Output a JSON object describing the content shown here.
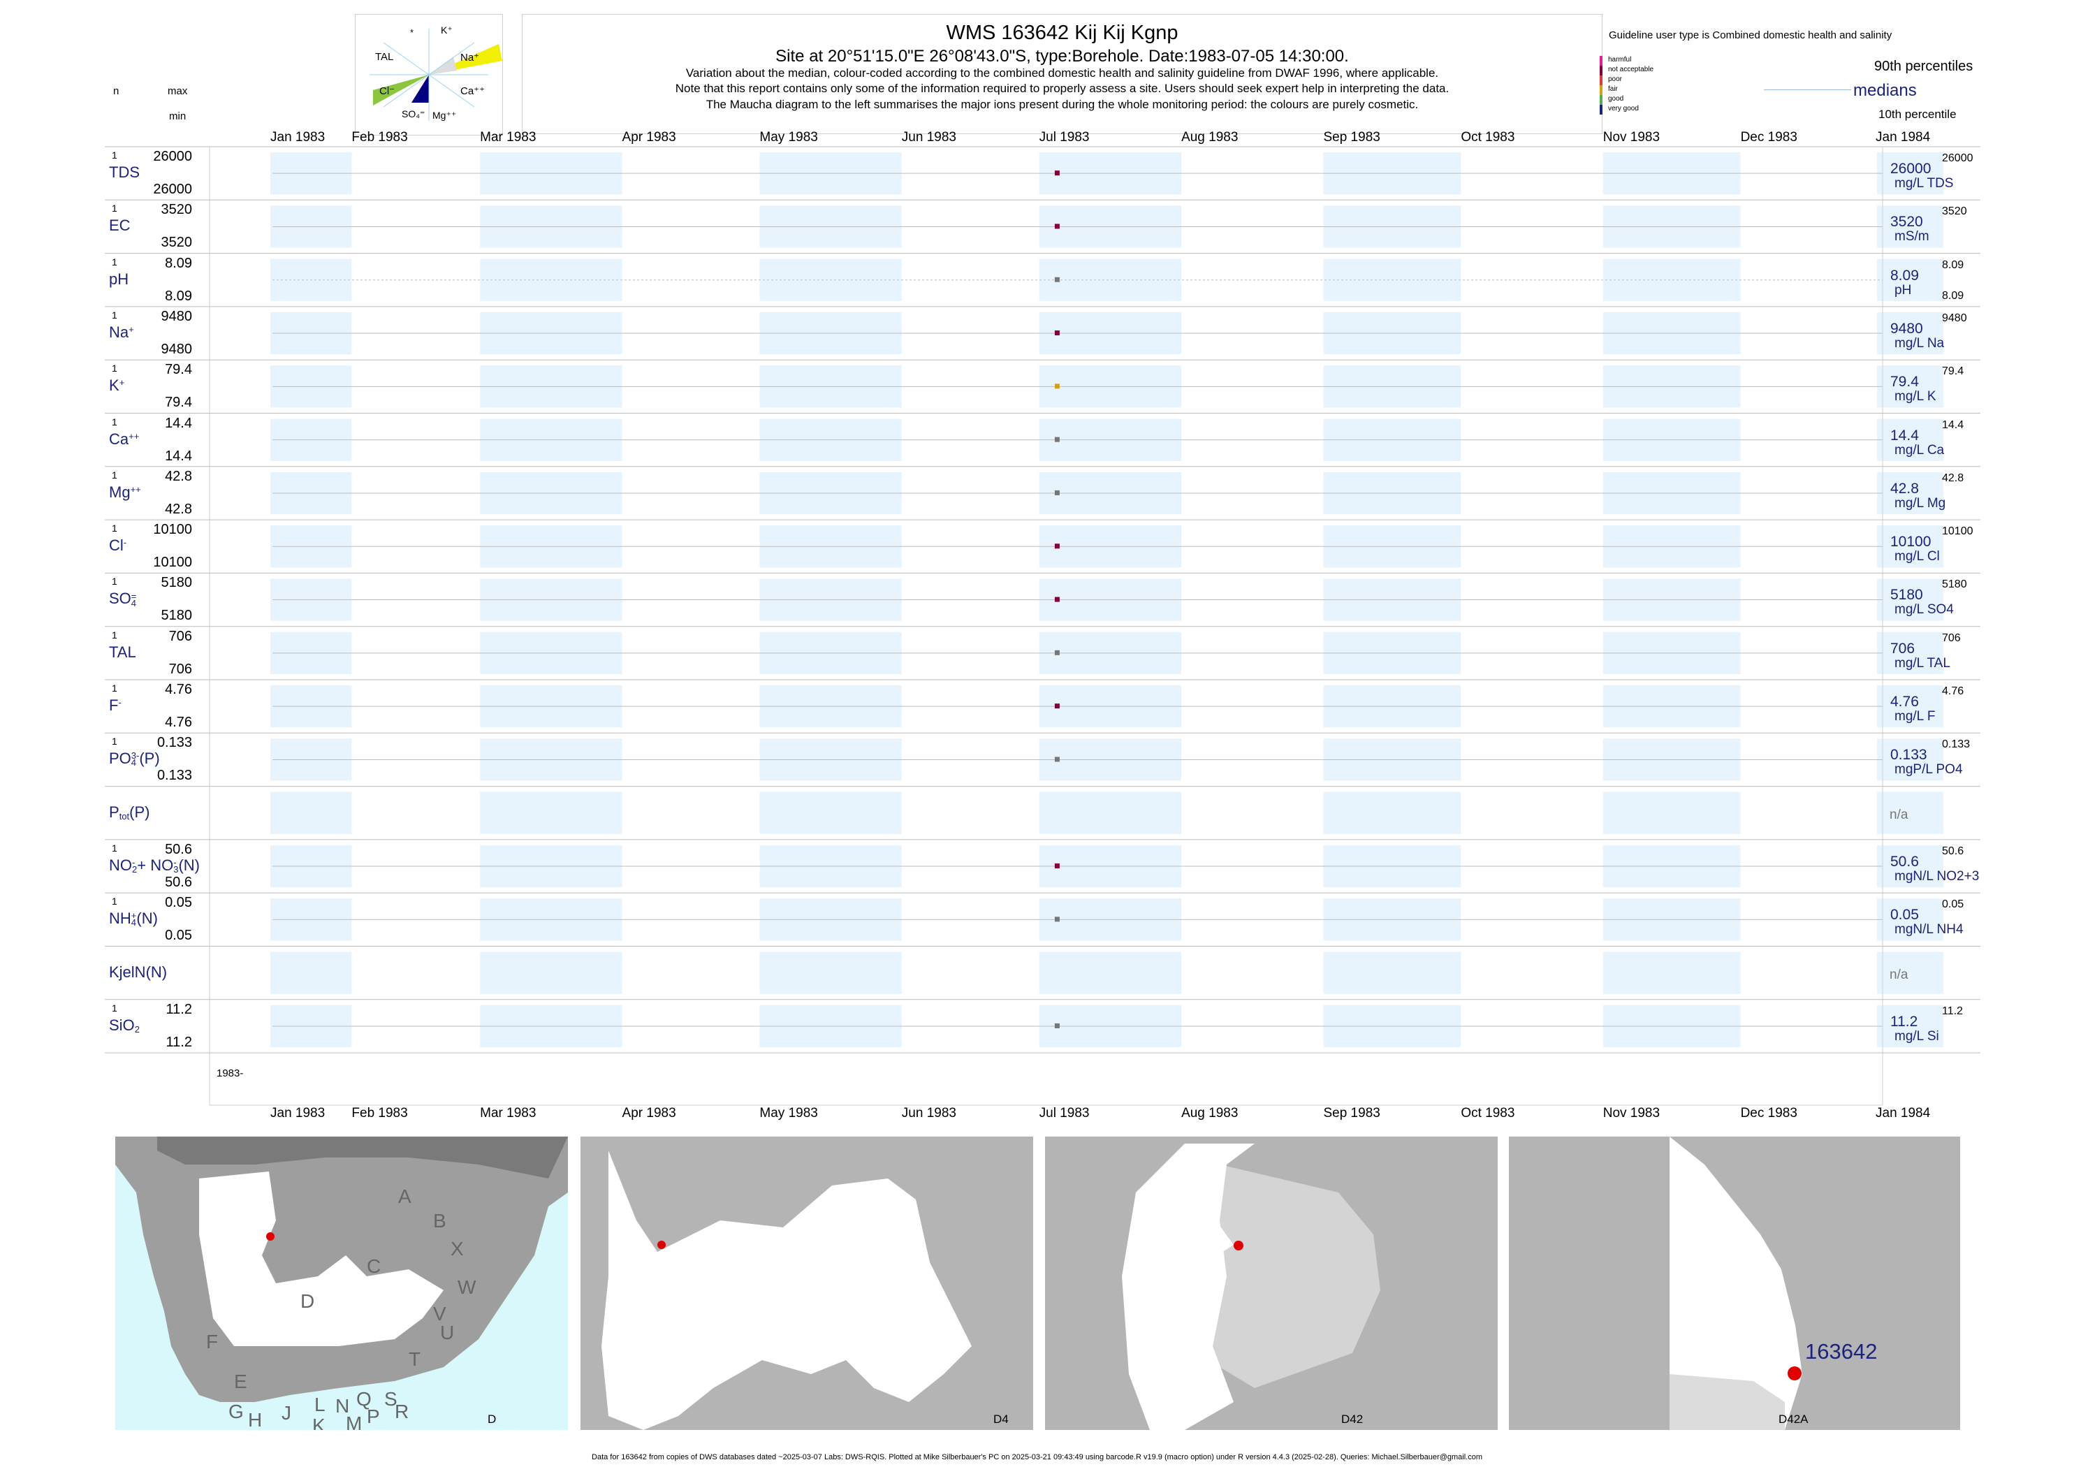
{
  "header": {
    "title": "WMS 163642  Kij Kij Kgnp",
    "subtitle": "Site at 20°51'15.0\"E 26°08'43.0\"S, type:Borehole. Date:1983-07-05 14:30:00.",
    "note1": "Variation about the median,  colour-coded according to the combined domestic health and salinity guideline from DWAF 1996, where applicable.",
    "note2": "Note that this report contains only some of the information required to properly assess a site. Users should seek expert help in interpreting the data.",
    "note3": "The Maucha diagram to the left summarises the major ions present during the whole monitoring period: the colours are purely cosmetic."
  },
  "left_legend": {
    "n": "n",
    "max": "max",
    "min": "min"
  },
  "maucha": {
    "labels": [
      "*",
      "K⁺",
      "Na⁺",
      "Ca⁺⁺",
      "Mg⁺⁺",
      "SO₄⁼",
      "Cl⁻",
      "TAL"
    ],
    "colors": {
      "na": "#f0f000",
      "cl": "#8cc63f",
      "so4": "#000080"
    }
  },
  "guideline": {
    "title": "Guideline user type is Combined domestic health and salinity",
    "categories": [
      {
        "label": "harmful",
        "color": "#e91e8c"
      },
      {
        "label": "not acceptable",
        "color": "#800040"
      },
      {
        "label": "poor",
        "color": "#e53935"
      },
      {
        "label": "fair",
        "color": "#d4a017"
      },
      {
        "label": "good",
        "color": "#4caf50"
      },
      {
        "label": "very good",
        "color": "#1a237e"
      }
    ],
    "p90": "90th percentiles",
    "medians": "medians",
    "p10": "10th percentile"
  },
  "chart_data": {
    "type": "scatter",
    "x_axis": {
      "ticks": [
        "Jan 1983",
        "Feb 1983",
        "Mar 1983",
        "Apr 1983",
        "May 1983",
        "Jun 1983",
        "Jul 1983",
        "Aug 1983",
        "Sep 1983",
        "Oct 1983",
        "Nov 1983",
        "Dec 1983",
        "Jan 1984"
      ],
      "range": [
        "1983-01-01",
        "1984-01-01"
      ],
      "year_label": "1983-"
    },
    "sample_date": "1983-07-05",
    "series": [
      {
        "label": "TDS",
        "n": "1",
        "max": "26000",
        "min": "26000",
        "median": "26000",
        "p90": "26000",
        "unit": "mg/L TDS",
        "value": 26000,
        "color": "#800040"
      },
      {
        "label": "EC",
        "n": "1",
        "max": "3520",
        "min": "3520",
        "median": "3520",
        "p90": "3520",
        "unit": "mS/m",
        "value": 3520,
        "color": "#800040"
      },
      {
        "label": "pH",
        "n": "1",
        "max": "8.09",
        "min": "8.09",
        "median": "8.09",
        "p90": "8.09",
        "p10": "8.09",
        "unit": "pH",
        "value": 8.09,
        "color": "#777777"
      },
      {
        "label": "Na",
        "sup": "+",
        "n": "1",
        "max": "9480",
        "min": "9480",
        "median": "9480",
        "p90": "9480",
        "unit": "mg/L Na",
        "value": 9480,
        "color": "#800040"
      },
      {
        "label": "K",
        "sup": "+",
        "n": "1",
        "max": "79.4",
        "min": "79.4",
        "median": "79.4",
        "p90": "79.4",
        "unit": "mg/L K",
        "value": 79.4,
        "color": "#d4a017"
      },
      {
        "label": "Ca",
        "sup": "++",
        "n": "1",
        "max": "14.4",
        "min": "14.4",
        "median": "14.4",
        "p90": "14.4",
        "unit": "mg/L Ca",
        "value": 14.4,
        "color": "#777777"
      },
      {
        "label": "Mg",
        "sup": "++",
        "n": "1",
        "max": "42.8",
        "min": "42.8",
        "median": "42.8",
        "p90": "42.8",
        "unit": "mg/L Mg",
        "value": 42.8,
        "color": "#777777"
      },
      {
        "label": "Cl",
        "sup": "-",
        "n": "1",
        "max": "10100",
        "min": "10100",
        "median": "10100",
        "p90": "10100",
        "unit": "mg/L Cl",
        "value": 10100,
        "color": "#800040"
      },
      {
        "label": "SO",
        "sub": "4",
        "sup": "=",
        "n": "1",
        "max": "5180",
        "min": "5180",
        "median": "5180",
        "p90": "5180",
        "unit": "mg/L SO4",
        "value": 5180,
        "color": "#800040"
      },
      {
        "label": "TAL",
        "n": "1",
        "max": "706",
        "min": "706",
        "median": "706",
        "p90": "706",
        "unit": "mg/L TAL",
        "value": 706,
        "color": "#777777"
      },
      {
        "label": "F",
        "sup": "-",
        "n": "1",
        "max": "4.76",
        "min": "4.76",
        "median": "4.76",
        "p90": "4.76",
        "unit": "mg/L F",
        "value": 4.76,
        "color": "#800040"
      },
      {
        "label": "PO",
        "sub": "4",
        "sup": "3-",
        "tail": "(P)",
        "n": "1",
        "max": "0.133",
        "min": "0.133",
        "median": "0.133",
        "p90": "0.133",
        "unit": "mgP/L PO4",
        "value": 0.133,
        "color": "#777777"
      },
      {
        "label": "P",
        "sub": "tot",
        "tail": "(P)",
        "na": "n/a"
      },
      {
        "label": "NO",
        "sub": "2",
        "sup": "-",
        "tail": "+ NO",
        "sub2": "3",
        "sup2": "-",
        "tail2": "(N)",
        "n": "1",
        "max": "50.6",
        "min": "50.6",
        "median": "50.6",
        "p90": "50.6",
        "unit": "mgN/L NO2+3",
        "value": 50.6,
        "color": "#800040"
      },
      {
        "label": "NH",
        "sub": "4",
        "sup": "+",
        "tail": "(N)",
        "n": "1",
        "max": "0.05",
        "min": "0.05",
        "median": "0.05",
        "p90": "0.05",
        "unit": "mgN/L NH4",
        "value": 0.05,
        "color": "#777777"
      },
      {
        "label": "KjelN(N)",
        "na": "n/a"
      },
      {
        "label": "SiO",
        "sub": "2",
        "n": "1",
        "max": "11.2",
        "min": "11.2",
        "median": "11.2",
        "p90": "11.2",
        "unit": "mg/L Si",
        "value": 11.2,
        "color": "#777777"
      }
    ]
  },
  "maps": [
    {
      "label": "D",
      "regions": [
        "A",
        "B",
        "X",
        "C",
        "W",
        "V",
        "U",
        "D",
        "T",
        "F",
        "E",
        "S",
        "R",
        "Q",
        "N",
        "L",
        "P",
        "M",
        "K",
        "J",
        "H",
        "G"
      ]
    },
    {
      "label": "D4"
    },
    {
      "label": "D42"
    },
    {
      "label": "D42A",
      "site_label": "163642"
    }
  ],
  "footer": "Data for 163642 from copies of DWS databases dated ~2025-03-07 Labs: DWS-RQIS. Plotted at Mike Silberbauer's PC on 2025-03-21 09:43:49 using barcode.R v19.9 (macro option) under R version 4.4.3 (2025-02-28). Queries: Michael.Silberbauer@gmail.com"
}
